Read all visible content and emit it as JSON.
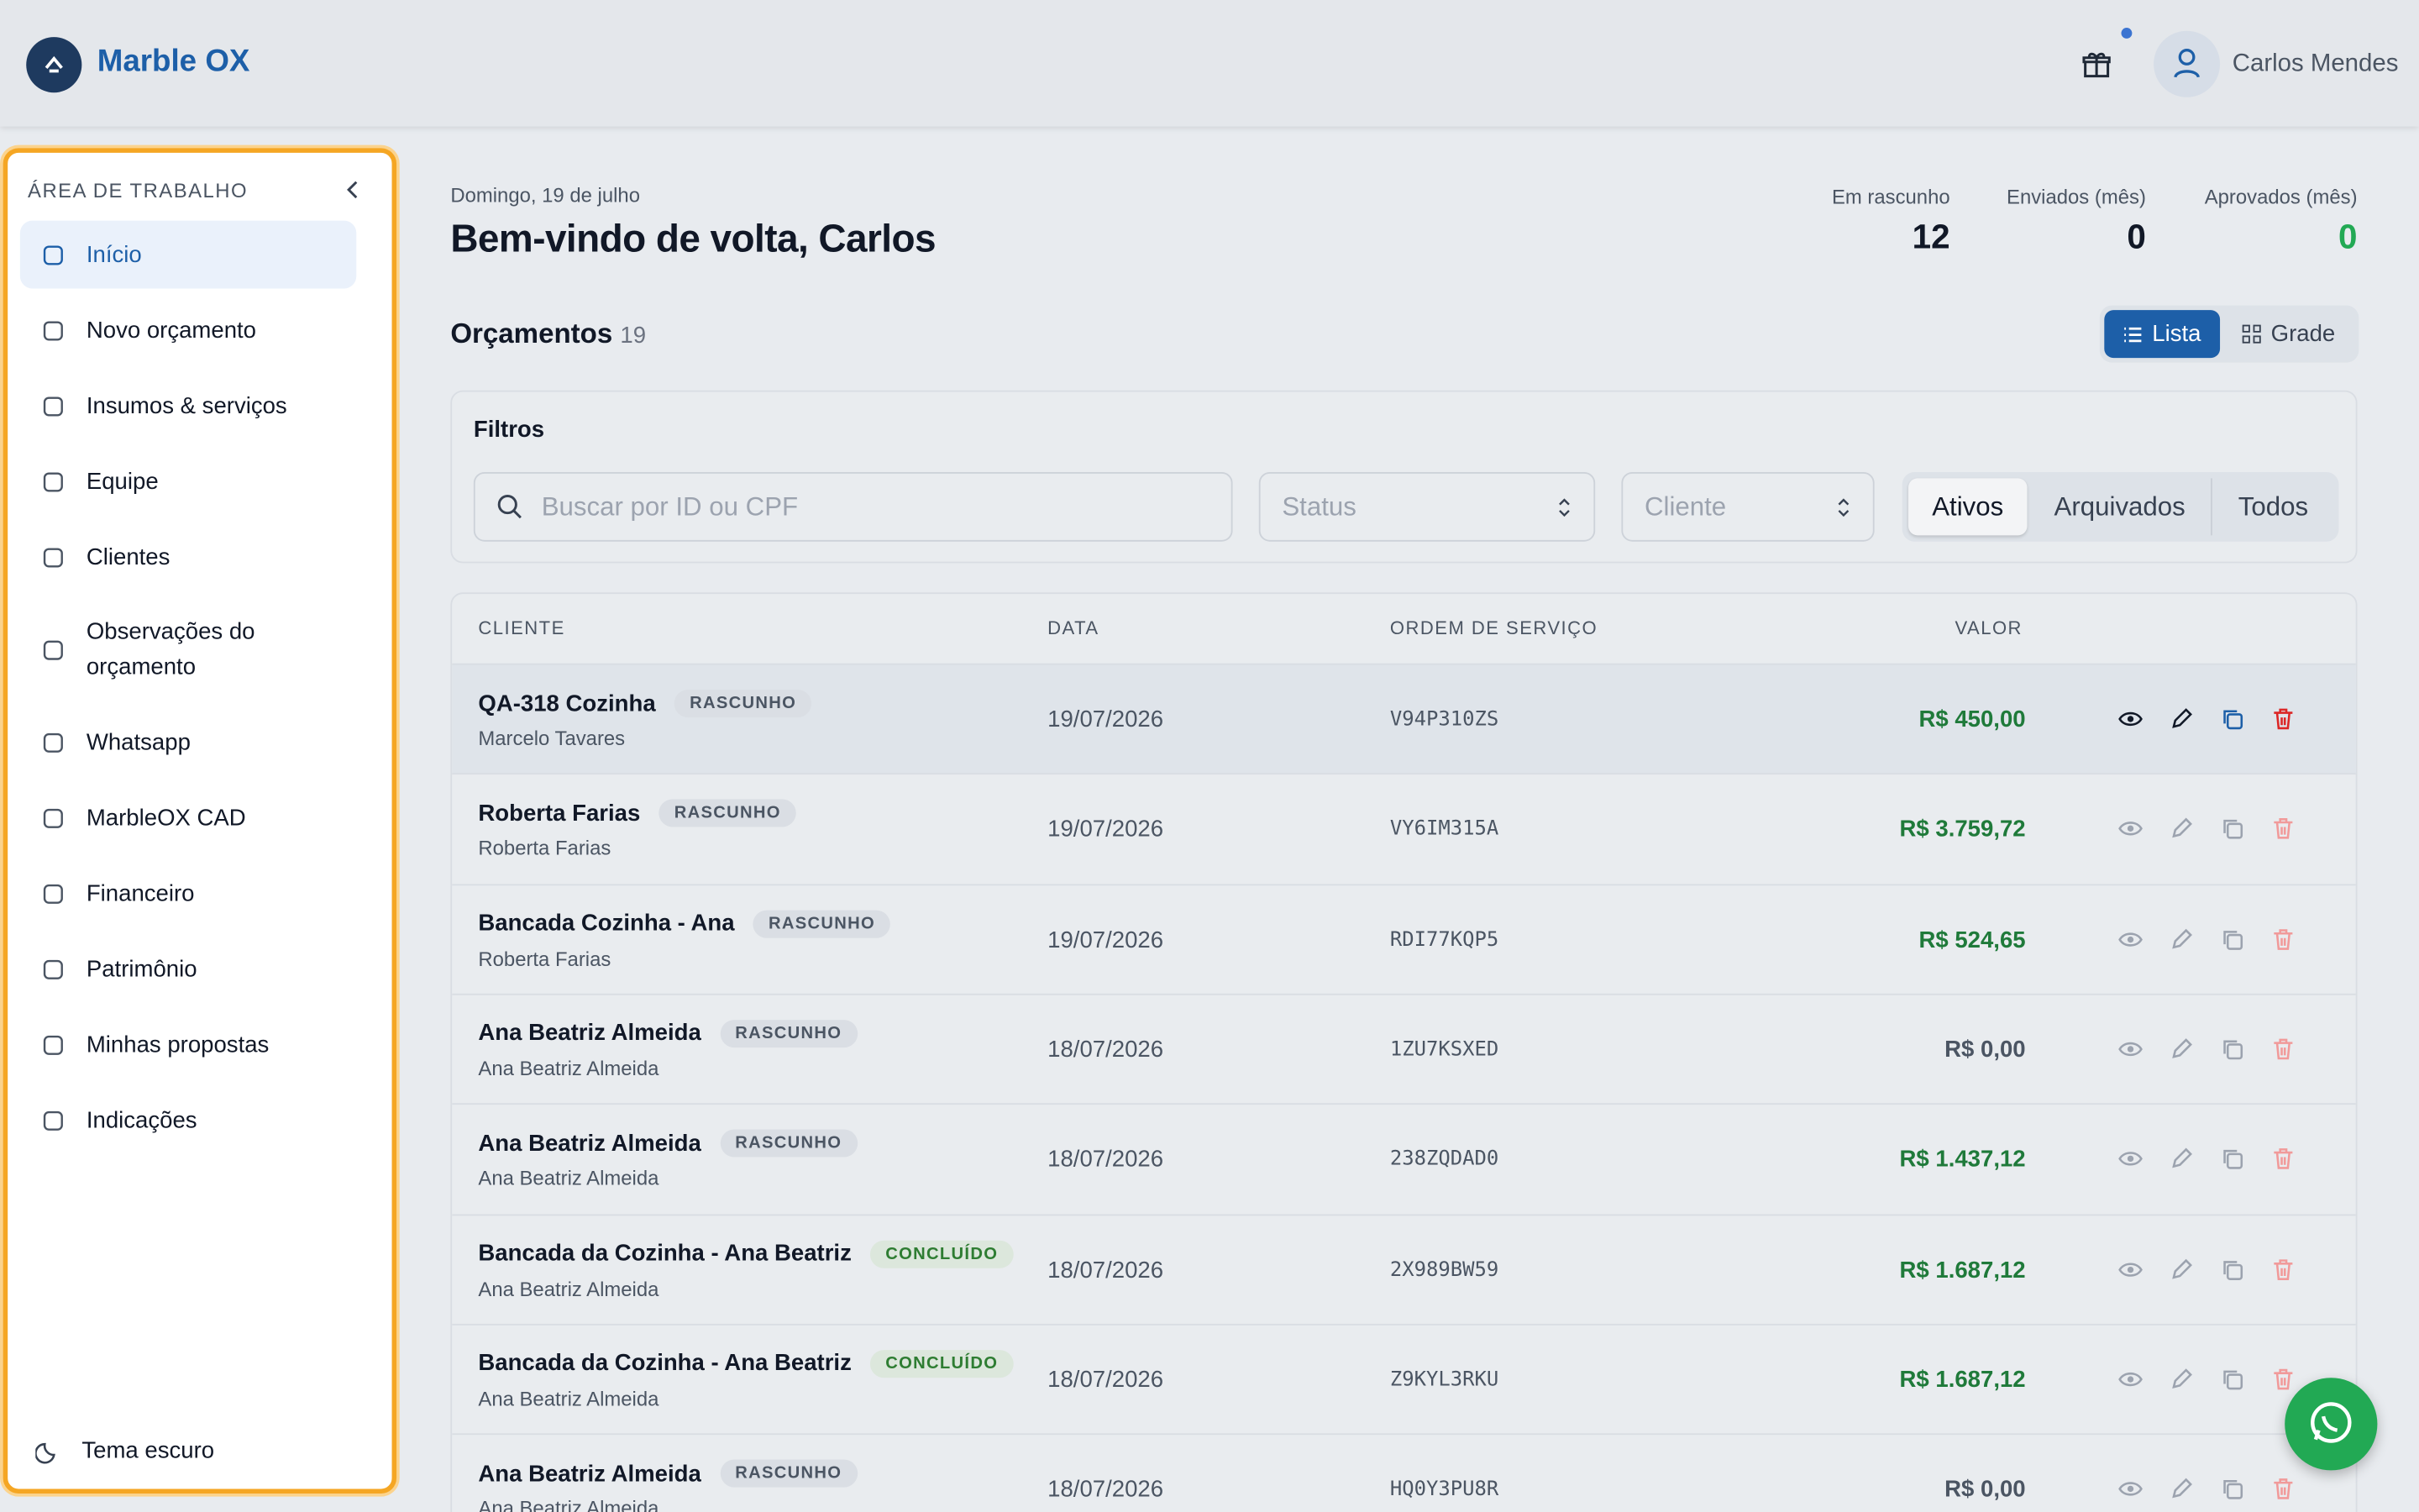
{
  "header": {
    "brand": "Marble OX",
    "user": "Carlos Mendes"
  },
  "sidebar": {
    "section": "ÁREA DE TRABALHO",
    "items": [
      "Início",
      "Novo orçamento",
      "Insumos & serviços",
      "Equipe",
      "Clientes",
      "Observações do orçamento",
      "Whatsapp",
      "MarbleOX CAD",
      "Financeiro",
      "Patrimônio",
      "Minhas propostas",
      "Indicações"
    ],
    "theme": "Tema escuro"
  },
  "greeting": {
    "date": "Domingo, 19 de julho",
    "title": "Bem-vindo de volta, Carlos"
  },
  "stats": [
    {
      "label": "Em rascunho",
      "value": 12,
      "color": "#111827"
    },
    {
      "label": "Enviados (mês)",
      "value": 0,
      "color": "#111827"
    },
    {
      "label": "Aprovados (mês)",
      "value": 0,
      "color": "#22a954"
    }
  ],
  "list": {
    "title": "Orçamentos",
    "count": 19,
    "views": [
      "Lista",
      "Grade"
    ]
  },
  "filters": {
    "title": "Filtros",
    "search": "Buscar por ID ou CPF",
    "status": "Status",
    "client": "Cliente",
    "tabs": [
      "Ativos",
      "Arquivados",
      "Todos"
    ]
  },
  "table": {
    "columns": [
      "CLIENTE",
      "DATA",
      "ORDEM DE SERVIÇO",
      "VALOR"
    ],
    "rows": [
      {
        "name": "QA-318 Cozinha",
        "badge": "RASCUNHO",
        "client": "Marcelo Tavares",
        "date": "19/07/2026",
        "order": "V94P310ZS",
        "value": "R$ 450,00",
        "value_color": "#1f7a3a"
      },
      {
        "name": "Roberta Farias",
        "badge": "RASCUNHO",
        "client": "Roberta Farias",
        "date": "19/07/2026",
        "order": "VY6IM315A",
        "value": "R$ 3.759,72",
        "value_color": "#1f7a3a"
      },
      {
        "name": "Bancada Cozinha - Ana",
        "badge": "RASCUNHO",
        "client": "Roberta Farias",
        "date": "19/07/2026",
        "order": "RDI77KQP5",
        "value": "R$ 524,65",
        "value_color": "#1f7a3a"
      },
      {
        "name": "Ana Beatriz Almeida",
        "badge": "RASCUNHO",
        "client": "Ana Beatriz Almeida",
        "date": "18/07/2026",
        "order": "1ZU7KSXED",
        "value": "R$ 0,00",
        "value_color": "#4b5563"
      },
      {
        "name": "Ana Beatriz Almeida",
        "badge": "RASCUNHO",
        "client": "Ana Beatriz Almeida",
        "date": "18/07/2026",
        "order": "238ZQDAD0",
        "value": "R$ 1.437,12",
        "value_color": "#1f7a3a"
      },
      {
        "name": "Bancada da Cozinha - Ana Beatriz",
        "badge": "CONCLUÍDO",
        "client": "Ana Beatriz Almeida",
        "date": "18/07/2026",
        "order": "2X989BW59",
        "value": "R$ 1.687,12",
        "value_color": "#1f7a3a"
      },
      {
        "name": "Bancada da Cozinha - Ana Beatriz",
        "badge": "CONCLUÍDO",
        "client": "Ana Beatriz Almeida",
        "date": "18/07/2026",
        "order": "Z9KYL3RKU",
        "value": "R$ 1.687,12",
        "value_color": "#1f7a3a"
      },
      {
        "name": "Ana Beatriz Almeida",
        "badge": "RASCUNHO",
        "client": "Ana Beatriz Almeida",
        "date": "18/07/2026",
        "order": "HQ0Y3PU8R",
        "value": "R$ 0,00",
        "value_color": "#4b5563"
      }
    ]
  }
}
